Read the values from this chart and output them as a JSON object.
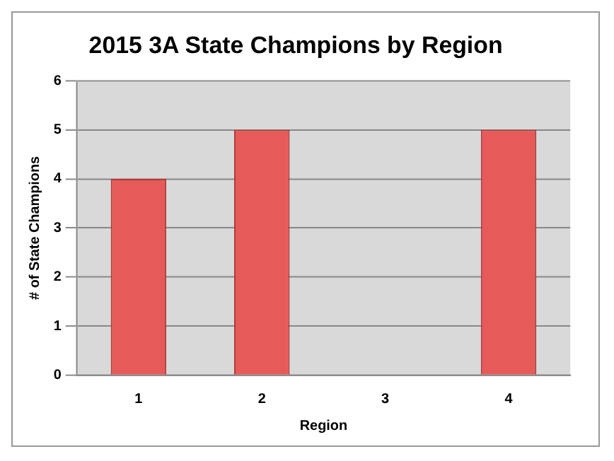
{
  "chart_data": {
    "type": "bar",
    "title": "2015 3A State Champions by Region",
    "xlabel": "Region",
    "ylabel": "# of State Champions",
    "categories": [
      "1",
      "2",
      "3",
      "4"
    ],
    "values": [
      4,
      5,
      0,
      5
    ],
    "color": "#e65a5a",
    "ylim": [
      0,
      6
    ],
    "yticks": [
      0,
      1,
      2,
      3,
      4,
      5,
      6
    ],
    "grid": "y",
    "legend": false
  }
}
